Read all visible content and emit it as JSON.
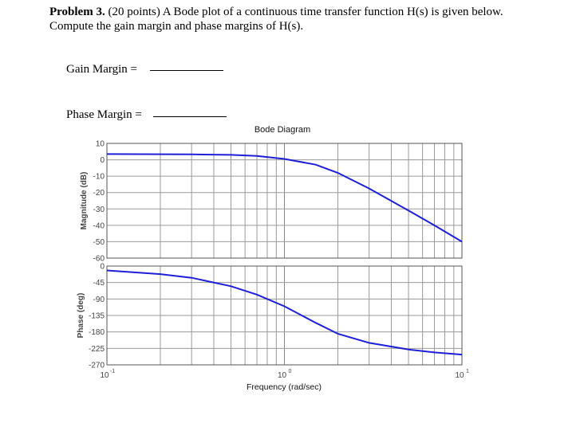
{
  "problem": {
    "label": "Problem 3.",
    "text_line1": " (20 points) A Bode plot of a continuous time transfer function H(s) is given below.",
    "text_line2": "Compute the gain margin and phase margins of H(s)."
  },
  "fields": {
    "gain_margin_label": "Gain Margin  =",
    "phase_margin_label": "Phase Margin  ="
  },
  "chart_data": {
    "type": "line",
    "title": "Bode Diagram",
    "xlabel": "Frequency (rad/sec)",
    "xscale": "log",
    "xlim": [
      0.1,
      10
    ],
    "x_tick_labels": [
      "10^-1",
      "10^0",
      "10^1"
    ],
    "grid": true,
    "magnitude": {
      "ylabel": "Magnitude (dB)",
      "ylim": [
        -60,
        10
      ],
      "y_ticks": [
        "10",
        "0",
        "-10",
        "-20",
        "-30",
        "-40",
        "-50",
        "-60"
      ],
      "series": [
        {
          "color": "#1f1fd8",
          "x": [
            0.1,
            0.2,
            0.3,
            0.5,
            0.7,
            1.0,
            1.5,
            2.0,
            3.0,
            5.0,
            7.0,
            10.0
          ],
          "y": [
            3.5,
            3.4,
            3.3,
            3.0,
            2.3,
            0.5,
            -3.0,
            -8.0,
            -17.5,
            -31.0,
            -40.0,
            -50.0
          ]
        }
      ]
    },
    "phase": {
      "ylabel": "Phase (deg)",
      "ylim": [
        -270,
        0
      ],
      "y_ticks": [
        "0",
        "-45",
        "-90",
        "-135",
        "-180",
        "-225",
        "-270"
      ],
      "series": [
        {
          "color": "#1f1fd8",
          "x": [
            0.1,
            0.2,
            0.3,
            0.5,
            0.7,
            1.0,
            1.5,
            2.0,
            3.0,
            5.0,
            7.0,
            10.0
          ],
          "y": [
            -12,
            -22,
            -32,
            -55,
            -78,
            -110,
            -155,
            -185,
            -210,
            -228,
            -236,
            -242
          ]
        }
      ]
    }
  }
}
